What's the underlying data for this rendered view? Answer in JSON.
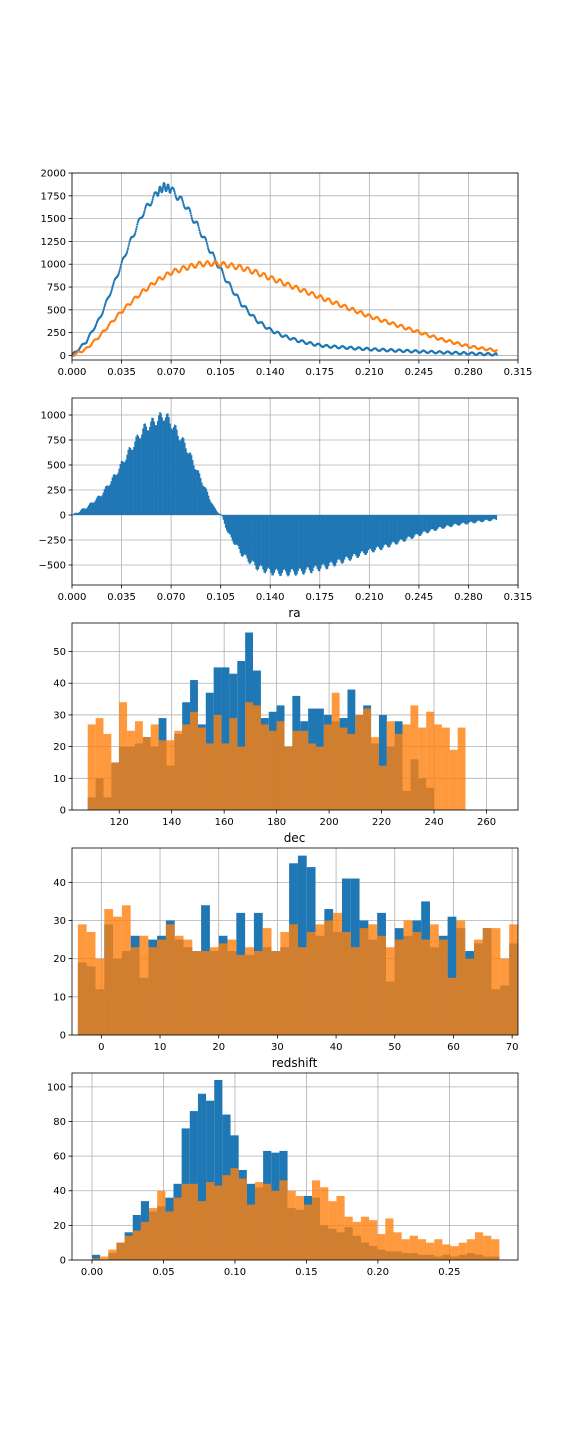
{
  "colors": {
    "blue": "#1f77b4",
    "orange": "#ff7f0e",
    "grid": "#b0b0b0"
  },
  "chart_data": [
    {
      "type": "scatter",
      "title": "",
      "xlabel": "",
      "ylabel": "",
      "xlim": [
        0,
        0.315
      ],
      "ylim": [
        -50,
        2000
      ],
      "grid": true,
      "xticks": [
        0,
        0.035,
        0.07,
        0.105,
        0.14,
        0.175,
        0.21,
        0.245,
        0.28,
        0.315
      ],
      "xtick_labels": [
        "0.000",
        "0.035",
        "0.070",
        "0.105",
        "0.140",
        "0.175",
        "0.210",
        "0.245",
        "0.280",
        "0.315"
      ],
      "yticks": [
        0,
        250,
        500,
        750,
        1000,
        1250,
        1500,
        1750,
        2000
      ],
      "ytick_labels": [
        "0",
        "250",
        "500",
        "750",
        "1000",
        "1250",
        "1500",
        "1750",
        "2000"
      ],
      "series": [
        {
          "color": "#1f77b4",
          "x": [
            0,
            0.01,
            0.02,
            0.03,
            0.04,
            0.05,
            0.06,
            0.065,
            0.07,
            0.08,
            0.09,
            0.1,
            0.11,
            0.12,
            0.13,
            0.14,
            0.15,
            0.16,
            0.17,
            0.18,
            0.19,
            0.2,
            0.21,
            0.22,
            0.23,
            0.24,
            0.25,
            0.26,
            0.27,
            0.28,
            0.29,
            0.3
          ],
          "y": [
            0,
            150,
            420,
            800,
            1200,
            1560,
            1780,
            1850,
            1820,
            1650,
            1380,
            1080,
            800,
            560,
            390,
            280,
            210,
            160,
            125,
            100,
            90,
            78,
            68,
            60,
            53,
            46,
            40,
            34,
            28,
            22,
            16,
            10
          ]
        },
        {
          "color": "#ff7f0e",
          "x": [
            0,
            0.01,
            0.02,
            0.03,
            0.04,
            0.05,
            0.06,
            0.07,
            0.08,
            0.09,
            0.1,
            0.11,
            0.12,
            0.13,
            0.14,
            0.15,
            0.16,
            0.17,
            0.18,
            0.19,
            0.2,
            0.21,
            0.22,
            0.23,
            0.24,
            0.25,
            0.26,
            0.27,
            0.28,
            0.29,
            0.3
          ],
          "y": [
            0,
            70,
            220,
            400,
            560,
            700,
            820,
            910,
            960,
            1000,
            1010,
            990,
            960,
            910,
            850,
            790,
            730,
            670,
            610,
            550,
            490,
            430,
            380,
            330,
            280,
            230,
            180,
            140,
            100,
            75,
            55
          ]
        }
      ]
    },
    {
      "type": "bar",
      "title": "",
      "xlabel": "",
      "ylabel": "",
      "xlim": [
        0,
        0.315
      ],
      "ylim": [
        -700,
        1170
      ],
      "grid": true,
      "xticks": [
        0,
        0.035,
        0.07,
        0.105,
        0.14,
        0.175,
        0.21,
        0.245,
        0.28,
        0.315
      ],
      "xtick_labels": [
        "0.000",
        "0.035",
        "0.070",
        "0.105",
        "0.140",
        "0.175",
        "0.210",
        "0.245",
        "0.280",
        "0.315"
      ],
      "yticks": [
        -500,
        -250,
        0,
        250,
        500,
        750,
        1000
      ],
      "ytick_labels": [
        "−500",
        "−250",
        "0",
        "250",
        "500",
        "750",
        "1000"
      ],
      "series": [
        {
          "color": "#1f77b4",
          "x": [
            0,
            0.01,
            0.02,
            0.03,
            0.04,
            0.05,
            0.06,
            0.065,
            0.07,
            0.08,
            0.09,
            0.1,
            0.105,
            0.11,
            0.12,
            0.13,
            0.14,
            0.15,
            0.16,
            0.17,
            0.18,
            0.19,
            0.2,
            0.21,
            0.22,
            0.23,
            0.24,
            0.25,
            0.26,
            0.27,
            0.28,
            0.29,
            0.3
          ],
          "y": [
            0,
            80,
            200,
            400,
            640,
            860,
            960,
            1000,
            910,
            690,
            380,
            70,
            0,
            -190,
            -400,
            -520,
            -570,
            -580,
            -570,
            -545,
            -510,
            -460,
            -410,
            -360,
            -320,
            -270,
            -220,
            -170,
            -130,
            -100,
            -80,
            -60,
            -45
          ]
        }
      ]
    },
    {
      "type": "bar",
      "title": "ra",
      "xlabel": "",
      "ylabel": "",
      "xlim": [
        102,
        272
      ],
      "ylim": [
        0,
        59
      ],
      "grid": true,
      "bin_start": 108,
      "bin_width": 3,
      "xticks": [
        120,
        140,
        160,
        180,
        200,
        220,
        240,
        260
      ],
      "xtick_labels": [
        "120",
        "140",
        "160",
        "180",
        "200",
        "220",
        "240",
        "260"
      ],
      "yticks": [
        0,
        10,
        20,
        30,
        40,
        50
      ],
      "ytick_labels": [
        "0",
        "10",
        "20",
        "30",
        "40",
        "50"
      ],
      "series": [
        {
          "color": "#1f77b4",
          "opacity": 1.0,
          "values": [
            4,
            10,
            4,
            15,
            20,
            20,
            21,
            23,
            20,
            29,
            14,
            24,
            34,
            41,
            27,
            37,
            45,
            45,
            43,
            47,
            56,
            44,
            29,
            31,
            33,
            20,
            36,
            28,
            32,
            32,
            30,
            28,
            29,
            38,
            30,
            33,
            21,
            30,
            20,
            28,
            6,
            16,
            10,
            7,
            0
          ]
        },
        {
          "color": "#ff7f0e",
          "opacity": 0.8,
          "values": [
            27,
            29,
            24,
            15,
            34,
            25,
            28,
            23,
            27,
            22,
            22,
            25,
            27,
            31,
            26,
            21,
            30,
            21,
            29,
            20,
            34,
            33,
            27,
            25,
            28,
            20,
            25,
            25,
            21,
            20,
            27,
            37,
            26,
            24,
            30,
            32,
            23,
            14,
            28,
            24,
            27,
            33,
            26,
            31,
            27,
            26,
            19,
            26
          ]
        }
      ]
    },
    {
      "type": "bar",
      "title": "dec",
      "xlabel": "",
      "ylabel": "",
      "xlim": [
        -5,
        71
      ],
      "ylim": [
        0,
        49
      ],
      "grid": true,
      "bin_start": -4,
      "bin_width": 1.5,
      "xticks": [
        0,
        10,
        20,
        30,
        40,
        50,
        60,
        70
      ],
      "xtick_labels": [
        "0",
        "10",
        "20",
        "30",
        "40",
        "50",
        "60",
        "70"
      ],
      "yticks": [
        0,
        10,
        20,
        30,
        40
      ],
      "ytick_labels": [
        "0",
        "10",
        "20",
        "30",
        "40"
      ],
      "series": [
        {
          "color": "#1f77b4",
          "opacity": 1.0,
          "values": [
            19,
            18,
            12,
            29,
            20,
            22,
            26,
            15,
            25,
            26,
            30,
            25,
            23,
            22,
            34,
            22,
            26,
            22,
            32,
            21,
            32,
            23,
            22,
            23,
            45,
            47,
            44,
            26,
            33,
            27,
            41,
            41,
            30,
            25,
            32,
            14,
            28,
            26,
            30,
            35,
            23,
            26,
            31,
            28,
            22,
            24,
            28,
            12,
            13,
            24,
            20,
            8
          ]
        },
        {
          "color": "#ff7f0e",
          "opacity": 0.8,
          "values": [
            29,
            27,
            20,
            33,
            31,
            34,
            23,
            26,
            23,
            25,
            29,
            26,
            25,
            22,
            22,
            23,
            24,
            25,
            21,
            23,
            22,
            28,
            22,
            27,
            29,
            23,
            27,
            29,
            30,
            32,
            27,
            23,
            28,
            29,
            26,
            23,
            25,
            30,
            27,
            25,
            29,
            25,
            15,
            30,
            20,
            25,
            28,
            28,
            20,
            29,
            22,
            26
          ]
        }
      ]
    },
    {
      "type": "bar",
      "title": "redshift",
      "xlabel": "",
      "ylabel": "",
      "xlim": [
        -0.014,
        0.298
      ],
      "ylim": [
        0,
        108
      ],
      "grid": true,
      "bin_start": 0,
      "bin_width": 0.0057,
      "xticks": [
        0,
        0.05,
        0.1,
        0.15,
        0.2,
        0.25
      ],
      "xtick_labels": [
        "0.00",
        "0.05",
        "0.10",
        "0.15",
        "0.20",
        "0.25"
      ],
      "yticks": [
        0,
        20,
        40,
        60,
        80,
        100
      ],
      "ytick_labels": [
        "0",
        "20",
        "40",
        "60",
        "80",
        "100"
      ],
      "series": [
        {
          "color": "#1f77b4",
          "opacity": 1.0,
          "values": [
            3,
            0,
            4,
            10,
            16,
            26,
            34,
            28,
            31,
            36,
            44,
            76,
            86,
            96,
            92,
            104,
            84,
            72,
            52,
            44,
            42,
            63,
            62,
            63,
            30,
            29,
            37,
            36,
            20,
            18,
            16,
            19,
            14,
            10,
            8,
            6,
            5,
            5,
            4,
            4,
            3,
            3,
            2,
            3,
            2,
            3,
            4,
            3,
            2,
            2
          ]
        },
        {
          "color": "#ff7f0e",
          "opacity": 0.8,
          "values": [
            1,
            2,
            6,
            10,
            14,
            17,
            22,
            30,
            40,
            28,
            36,
            44,
            44,
            34,
            45,
            43,
            49,
            53,
            47,
            32,
            45,
            44,
            40,
            46,
            40,
            37,
            32,
            46,
            42,
            34,
            37,
            25,
            22,
            25,
            23,
            15,
            24,
            16,
            12,
            14,
            12,
            10,
            12,
            9,
            8,
            10,
            12,
            16,
            14,
            12
          ]
        }
      ]
    }
  ]
}
